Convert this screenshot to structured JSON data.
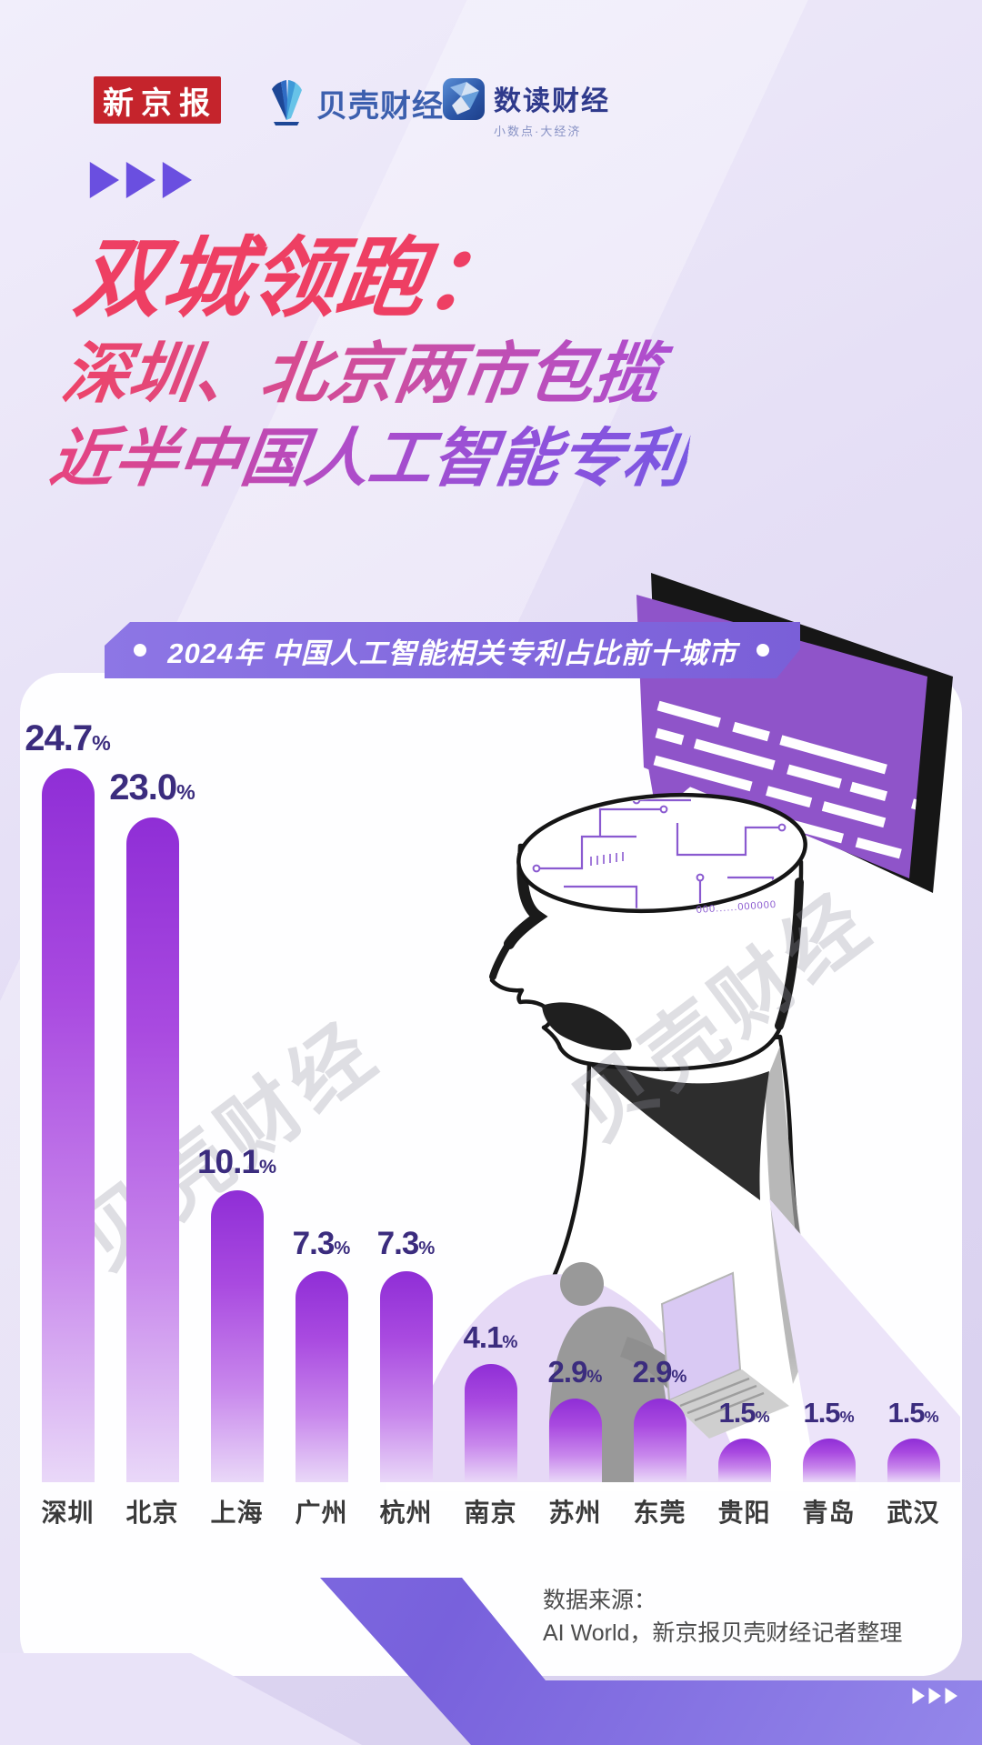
{
  "header": {
    "xjb_logo": "新京报",
    "bk_logo": "贝壳财经",
    "sd_logo": "数读财经",
    "sd_logo_sub": "小数点·大经济"
  },
  "icons": {
    "header_triangles": "triple-right-play-arrows",
    "footer_triangles": "triple-right-play-arrows",
    "bk_shell_icon": "blue-shell-fan",
    "sd_logo_icon": "blue-origami-square",
    "banner_dots": "white-dot"
  },
  "title": {
    "line1": "双城领跑：",
    "line2": "深圳、北京两市包揽",
    "line3": "近半中国人工智能专利"
  },
  "banner": {
    "label": "2024年 中国人工智能相关专利占比前十城市"
  },
  "chart_data": {
    "type": "bar",
    "title": "2024年 中国人工智能相关专利占比前十城市",
    "unit": "%",
    "categories": [
      "深圳",
      "北京",
      "上海",
      "广州",
      "杭州",
      "南京",
      "苏州",
      "东莞",
      "贵阳",
      "青岛",
      "武汉"
    ],
    "values": [
      24.7,
      23.0,
      10.1,
      7.3,
      7.3,
      4.1,
      2.9,
      2.9,
      1.5,
      1.5,
      1.5
    ],
    "value_labels": [
      "24.7",
      "23.0",
      "10.1",
      "7.3",
      "7.3",
      "4.1",
      "2.9",
      "2.9",
      "1.5",
      "1.5",
      "1.5"
    ],
    "ylim": [
      0,
      26
    ],
    "grid": false,
    "legend": false,
    "bar_color_top": "#8f2ed6",
    "bar_color_bottom": "#e9d8f8",
    "value_label_color": "#3b2c7e",
    "category_label_color": "#3a3a3a"
  },
  "illustration": {
    "circuit_caption": "000......000000"
  },
  "watermark": "贝壳财经",
  "source": {
    "line1": "数据来源：",
    "line2": "AI World，新京报贝壳财经记者整理"
  },
  "colors": {
    "background": "#e3dcf4",
    "panel": "#fefeff",
    "banner_purple": "#7a5fd8",
    "title_red": "#ee3f63",
    "title_purple": "#7a58e2",
    "bar_purple": "#a94ae0",
    "xjb_red": "#c5242c",
    "bk_blue": "#3c5fae",
    "sd_navy": "#2f3a8c",
    "ribbon_purple": "#7861dc"
  }
}
